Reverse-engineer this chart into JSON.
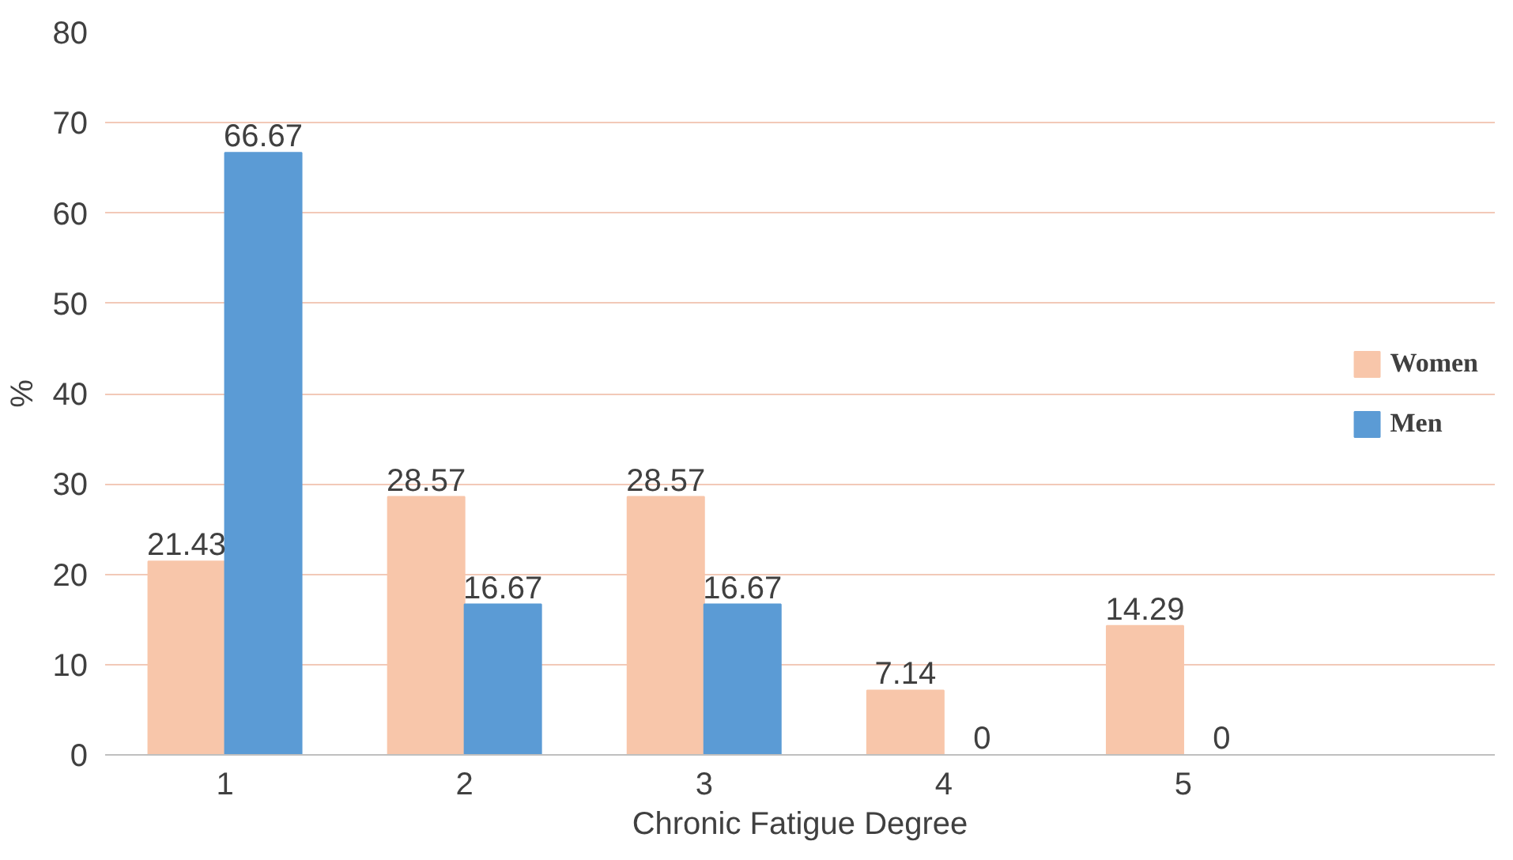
{
  "chart_data": {
    "type": "bar",
    "xlabel": "Chronic Fatigue Degree",
    "ylabel": "%",
    "categories": [
      "1",
      "2",
      "3",
      "4",
      "5"
    ],
    "series": [
      {
        "name": "Women",
        "color": "#f8c6aa",
        "values": [
          21.43,
          28.57,
          28.57,
          7.14,
          14.29
        ]
      },
      {
        "name": "Men",
        "color": "#5b9bd5",
        "values": [
          66.67,
          16.67,
          16.67,
          0,
          0
        ]
      }
    ],
    "ylim": [
      0,
      80
    ],
    "yticks": [
      0,
      10,
      20,
      30,
      40,
      50,
      60,
      70,
      80
    ],
    "grid": "y",
    "legend": "right",
    "data_labels": true
  }
}
